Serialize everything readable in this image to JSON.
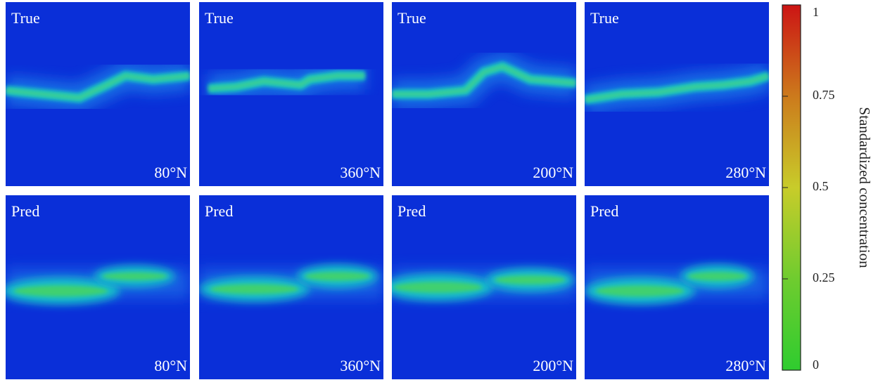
{
  "panels": [
    {
      "label": "True",
      "angle": "80°N"
    },
    {
      "label": "True",
      "angle": "360°N"
    },
    {
      "label": "True",
      "angle": "200°N"
    },
    {
      "label": "True",
      "angle": "280°N"
    },
    {
      "label": "Pred",
      "angle": "80°N"
    },
    {
      "label": "Pred",
      "angle": "360°N"
    },
    {
      "label": "Pred",
      "angle": "200°N"
    },
    {
      "label": "Pred",
      "angle": "280°N"
    }
  ],
  "colorbar": {
    "label": "Standardized concentration",
    "lim": [
      0,
      1
    ],
    "ticks": [
      0,
      0.25,
      0.5,
      0.75,
      1
    ]
  }
}
